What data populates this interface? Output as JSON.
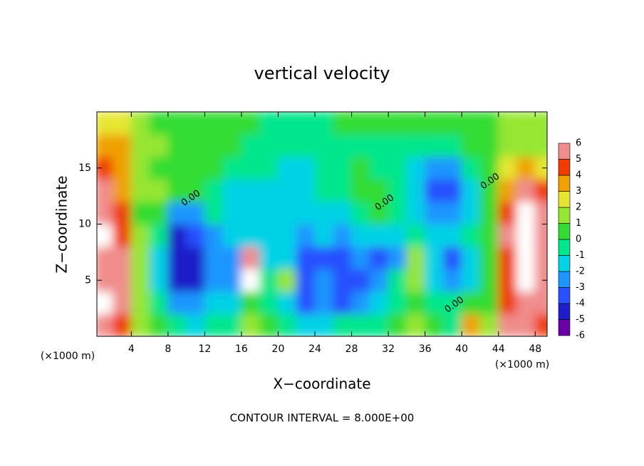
{
  "chart_data": {
    "type": "heatmap",
    "title": "vertical velocity",
    "x_label": "X−coordinate",
    "y_label": "Z−coordinate",
    "x_units": [
      "(×1000 m)",
      "(×1000 m)"
    ],
    "footer": "CONTOUR INTERVAL = 8.000E+00",
    "xlim": [
      0.25,
      49.3
    ],
    "ylim": [
      0,
      20
    ],
    "xticks": [
      4,
      8,
      12,
      16,
      20,
      24,
      28,
      32,
      36,
      40,
      44,
      48
    ],
    "yticks": [
      5,
      10,
      15
    ],
    "x": [
      1,
      3,
      5,
      7,
      9,
      11,
      13,
      15,
      17,
      19,
      21,
      23,
      25,
      27,
      29,
      31,
      33,
      35,
      37,
      39,
      41,
      43,
      45,
      47,
      49
    ],
    "y": [
      1,
      3,
      5,
      7,
      9,
      11,
      13,
      15,
      17,
      19
    ],
    "z": [
      [
        6,
        4,
        1,
        0,
        -1,
        -2,
        -1,
        -1,
        1,
        0,
        -1,
        -2,
        -2,
        -1,
        -1,
        -1,
        0,
        1,
        0,
        -1,
        3,
        1,
        5,
        6,
        4
      ],
      [
        7,
        5,
        1,
        -1,
        -3,
        -3,
        -2,
        -2,
        0,
        -1,
        -2,
        -4,
        -3,
        -4,
        -3,
        -2,
        -1,
        0,
        -1,
        -1,
        0,
        0,
        4,
        6,
        5
      ],
      [
        6,
        5,
        1,
        -2,
        -5,
        -5,
        -3,
        -3,
        7,
        -1,
        1,
        -4,
        -3,
        -4,
        -4,
        -3,
        -1,
        1,
        -2,
        -3,
        -2,
        0,
        4,
        7,
        6
      ],
      [
        6,
        5,
        1,
        -2,
        -5,
        -5,
        -3,
        -3,
        5,
        -2,
        -2,
        -4,
        -4,
        -4,
        -3,
        -4,
        -3,
        1,
        -2,
        -4,
        -2,
        0,
        4,
        7,
        6
      ],
      [
        7,
        4,
        1,
        -1,
        -5,
        -4,
        -3,
        -2,
        -2,
        -2,
        -2,
        -3,
        -2,
        -3,
        -2,
        -2,
        -2,
        -1,
        -2,
        -2,
        -1,
        0,
        5,
        7,
        5
      ],
      [
        6,
        4,
        0,
        0,
        -3,
        -3,
        -1,
        -2,
        -2,
        -2,
        -2,
        -2,
        -2,
        -2,
        -1,
        0,
        -1,
        -2,
        -3,
        -3,
        -2,
        0,
        4,
        7,
        5
      ],
      [
        5,
        3,
        1,
        1,
        0,
        0,
        -1,
        -2,
        -2,
        -2,
        -2,
        -2,
        -1,
        -1,
        0,
        0,
        -1,
        -2,
        -4,
        -4,
        -2,
        0,
        3,
        6,
        4
      ],
      [
        4,
        3,
        1,
        0,
        0,
        0,
        0,
        -1,
        -1,
        -1,
        -2,
        -2,
        -1,
        -1,
        0,
        -1,
        -1,
        -2,
        -3,
        -3,
        -1,
        0,
        2,
        3,
        2
      ],
      [
        3,
        3,
        1,
        1,
        0,
        0,
        0,
        0,
        -1,
        -1,
        -1,
        -1,
        -1,
        -1,
        -1,
        -1,
        -1,
        -1,
        -1,
        -1,
        0,
        0,
        1,
        1,
        1
      ],
      [
        2,
        2,
        1,
        0,
        0,
        0,
        0,
        0,
        0,
        -1,
        -1,
        -1,
        -1,
        0,
        0,
        0,
        0,
        0,
        0,
        0,
        0,
        0,
        1,
        1,
        1
      ]
    ],
    "colorbar": {
      "levels": [
        -6,
        -5,
        -4,
        -3,
        -2,
        -1,
        0,
        1,
        2,
        3,
        4,
        5,
        6
      ],
      "colors": [
        "#6a00a8",
        "#1e1ec8",
        "#2850ff",
        "#1e96ff",
        "#00d2e6",
        "#00e68c",
        "#32dc32",
        "#96e632",
        "#e6e632",
        "#f0a000",
        "#f03c00",
        "#f08c8c"
      ],
      "over_color": "#ffffff"
    },
    "contour_labels": [
      {
        "text": "0.00",
        "x": 10.5,
        "y": 12.3
      },
      {
        "text": "0.00",
        "x": 31.6,
        "y": 11.9
      },
      {
        "text": "0.00",
        "x": 43.1,
        "y": 13.8
      },
      {
        "text": "0.00",
        "x": 39.2,
        "y": 2.8
      }
    ]
  }
}
